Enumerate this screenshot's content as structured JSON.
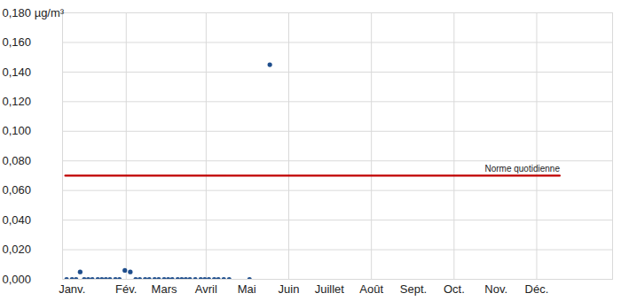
{
  "chart_data": {
    "type": "scatter",
    "series": [
      {
        "type": "scatter",
        "marker": "circle",
        "color": "#1f4e8c",
        "x": [
          2,
          6,
          9,
          12,
          15,
          18,
          21,
          25,
          28,
          31,
          34,
          38,
          41,
          45,
          49,
          53,
          56,
          60,
          63,
          67,
          70,
          74,
          77,
          80,
          84,
          87,
          90,
          93,
          97,
          101,
          104,
          107,
          111,
          114,
          118,
          122,
          137,
          152
        ],
        "values": [
          0,
          0,
          0,
          0.005,
          0,
          0,
          0,
          0,
          0,
          0,
          0,
          0,
          0,
          0.006,
          0.005,
          0,
          0,
          0,
          0,
          0,
          0,
          0,
          0,
          0,
          0,
          0,
          0,
          0,
          0,
          0,
          0,
          0,
          0,
          0,
          0,
          0,
          0,
          0.145
        ]
      },
      {
        "name": "Norme quotidienne",
        "type": "line",
        "line_style": "solid",
        "color": "#c00000",
        "x": [
          1,
          366
        ],
        "values": [
          0.07,
          0.07
        ]
      }
    ],
    "xlim": [
      -1,
      405
    ],
    "xticks": [
      {
        "value": 6,
        "label": "Janv."
      },
      {
        "value": 46,
        "label": "Fév."
      },
      {
        "value": 74,
        "label": "Mars"
      },
      {
        "value": 105,
        "label": "Avril"
      },
      {
        "value": 135,
        "label": "Mai"
      },
      {
        "value": 166,
        "label": "Juin"
      },
      {
        "value": 196,
        "label": "Juillet"
      },
      {
        "value": 227,
        "label": "Août"
      },
      {
        "value": 258,
        "label": "Sept."
      },
      {
        "value": 288,
        "label": "Oct."
      },
      {
        "value": 319,
        "label": "Nov."
      },
      {
        "value": 349,
        "label": "Déc."
      }
    ],
    "ylim": [
      0,
      0.18
    ],
    "yticks": [
      {
        "value": 0,
        "label": "0,000"
      },
      {
        "value": 0.02,
        "label": "0,020"
      },
      {
        "value": 0.04,
        "label": "0,040"
      },
      {
        "value": 0.06,
        "label": "0,060"
      },
      {
        "value": 0.08,
        "label": "0,080"
      },
      {
        "value": 0.1,
        "label": "0,100"
      },
      {
        "value": 0.12,
        "label": "0,120"
      },
      {
        "value": 0.14,
        "label": "0,140"
      },
      {
        "value": 0.16,
        "label": "0,160"
      },
      {
        "value": 0.18,
        "label": "0,180 µg/m³"
      }
    ],
    "grid": true
  }
}
